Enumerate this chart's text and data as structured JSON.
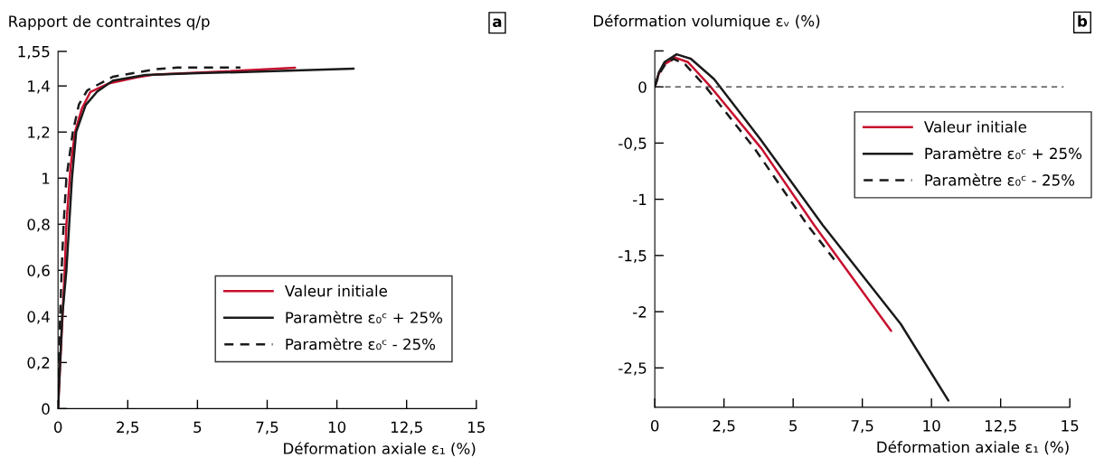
{
  "chart_data": [
    {
      "type": "line",
      "ylabel": "Rapport de contraintes q/p",
      "xlabel": "Déformation axiale ε₁ (%)",
      "annotations": [
        "a"
      ],
      "xlim": [
        0,
        15
      ],
      "xticks": [
        0,
        {
          "value": 2.5,
          "label": "2,5"
        },
        5,
        {
          "value": 7.5,
          "label": "7,5"
        },
        10,
        {
          "value": 12.5,
          "label": "12,5"
        },
        15
      ],
      "ylim": [
        0,
        1.55
      ],
      "yticks": [
        0,
        {
          "value": 0.2,
          "label": "0,2"
        },
        {
          "value": 0.4,
          "label": "0,4"
        },
        {
          "value": 0.6,
          "label": "0,6"
        },
        {
          "value": 0.8,
          "label": "0,8"
        },
        1,
        {
          "value": 1.2,
          "label": "1,2"
        },
        {
          "value": 1.4,
          "label": "1,4"
        },
        {
          "value": 1.55,
          "label": "1,55"
        }
      ],
      "grid": false,
      "legend": "bottom right",
      "series": [
        {
          "name": "Valeur initiale",
          "color": "#c8102e",
          "line_style": "solid",
          "x": [
            0,
            0.1,
            0.24,
            0.3,
            0.45,
            0.61,
            0.85,
            1.16,
            1.8,
            2.8,
            3.5,
            5.5,
            8.5
          ],
          "values": [
            0,
            0.25,
            0.6,
            0.8,
            1.05,
            1.2,
            1.3,
            1.374,
            1.41,
            1.437,
            1.45,
            1.46,
            1.479
          ]
        },
        {
          "name": "Paramètre ε₀ᶜ + 25%",
          "color": "#1a1a1a",
          "line_style": "solid",
          "x": [
            0,
            0.15,
            0.3,
            0.4,
            0.5,
            0.65,
            0.99,
            1.4,
            1.97,
            3.13,
            5,
            8,
            10.6
          ],
          "values": [
            0,
            0.4,
            0.6,
            0.8,
            1.0,
            1.2,
            1.317,
            1.375,
            1.423,
            1.448,
            1.455,
            1.465,
            1.475
          ]
        },
        {
          "name": "Paramètre ε₀ᶜ - 25%",
          "color": "#1a1a1a",
          "line_style": "dashed",
          "x": [
            0,
            0.05,
            0.13,
            0.2,
            0.3,
            0.53,
            0.75,
            1.05,
            1.97,
            3.47,
            4.29,
            6.54
          ],
          "values": [
            0,
            0.3,
            0.6,
            0.8,
            1.0,
            1.2,
            1.32,
            1.381,
            1.44,
            1.472,
            1.48,
            1.48
          ]
        }
      ]
    },
    {
      "type": "line",
      "ylabel": "Déformation volumique εᵥ (%)",
      "xlabel": "Déformation axiale ε₁ (%)",
      "annotations": [
        "b"
      ],
      "xlim": [
        0,
        15
      ],
      "xticks": [
        0,
        {
          "value": 2.5,
          "label": "2,5"
        },
        5,
        {
          "value": 7.5,
          "label": "7,5"
        },
        10,
        {
          "value": 12.5,
          "label": "12,5"
        },
        15
      ],
      "ylim": [
        -2.85,
        0.32
      ],
      "yticks": [
        {
          "value": -2.5,
          "label": "-2,5"
        },
        -2,
        {
          "value": -1.5,
          "label": "-1,5"
        },
        -1,
        {
          "value": -0.5,
          "label": "-0,5"
        },
        0,
        {
          "value": 0.32,
          "label": null
        }
      ],
      "grid": false,
      "legend": "top right",
      "ref_lines": [
        {
          "axis": "y",
          "value": 0,
          "line_style": "dashed",
          "color": "#333333"
        }
      ],
      "series": [
        {
          "name": "Valeur initiale",
          "color": "#c8102e",
          "line_style": "solid",
          "x": [
            0,
            0.15,
            0.35,
            0.74,
            1.2,
            2.02,
            3.86,
            5.76,
            8.54
          ],
          "values": [
            0,
            0.12,
            0.2,
            0.26,
            0.22,
            0,
            -0.55,
            -1.23,
            -2.17
          ]
        },
        {
          "name": "Paramètre ε₀ᶜ + 25%",
          "color": "#1a1a1a",
          "line_style": "solid",
          "x": [
            0,
            0.15,
            0.35,
            0.79,
            1.3,
            2.14,
            3.8,
            6.07,
            8.89,
            10.61
          ],
          "values": [
            0,
            0.13,
            0.22,
            0.29,
            0.25,
            0.07,
            -0.46,
            -1.23,
            -2.11,
            -2.79
          ]
        },
        {
          "name": "Paramètre ε₀ᶜ - 25%",
          "color": "#1a1a1a",
          "line_style": "dashed",
          "x": [
            0,
            0.15,
            0.35,
            0.67,
            1.1,
            1.84,
            3.61,
            5.52,
            6.56
          ],
          "values": [
            0,
            0.11,
            0.19,
            0.25,
            0.2,
            0,
            -0.55,
            -1.23,
            -1.56
          ]
        }
      ]
    }
  ]
}
